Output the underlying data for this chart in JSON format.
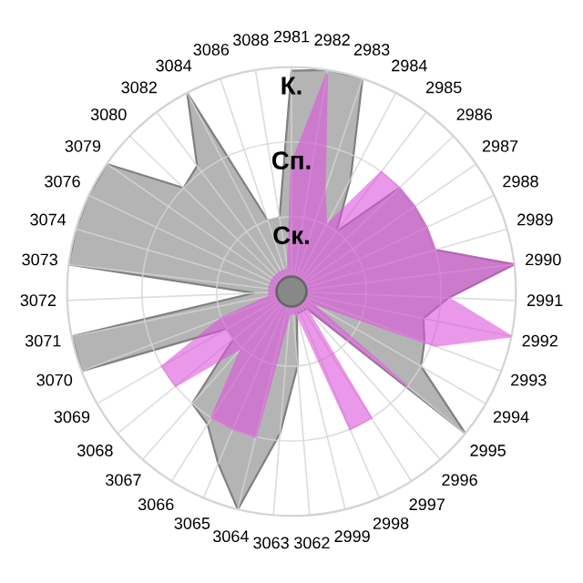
{
  "chart_data": {
    "type": "radar",
    "categories": [
      "2981",
      "2982",
      "2983",
      "2984",
      "2985",
      "2986",
      "2987",
      "2988",
      "2989",
      "2990",
      "2991",
      "2992",
      "2993",
      "2994",
      "2995",
      "2996",
      "2997",
      "2998",
      "2999",
      "3062",
      "3063",
      "3064",
      "3065",
      "3066",
      "3067",
      "3068",
      "3069",
      "3070",
      "3071",
      "3072",
      "3073",
      "3074",
      "3076",
      "3079",
      "3080",
      "3082",
      "3084",
      "3086",
      "3088"
    ],
    "series": [
      {
        "color": "#b4b4b4",
        "values": [
          2.95,
          3.0,
          3.0,
          1.7,
          1.0,
          2.0,
          2.0,
          2.0,
          2.0,
          3.0,
          2.1,
          1.8,
          1.9,
          2.0,
          3.0,
          0.3,
          0.3,
          0.3,
          0.3,
          1.0,
          1.9,
          3.0,
          2.5,
          2.1,
          2.0,
          1.0,
          1.0,
          3.0,
          3.0,
          0.5,
          3.0,
          3.0,
          3.0,
          3.0,
          2.0,
          2.1,
          3.0,
          1.0,
          1.0
        ]
      },
      {
        "color": "#dd55dd",
        "values": [
          1.7,
          2.95,
          1.4,
          1.0,
          2.0,
          2.0,
          2.0,
          2.0,
          2.0,
          3.0,
          2.1,
          3.0,
          2.05,
          0.3,
          2.0,
          0.3,
          2.0,
          2.0,
          0.3,
          0.3,
          0.3,
          2.0,
          2.0,
          2.0,
          1.0,
          2.0,
          2.0,
          1.0,
          0.3,
          0.3,
          0.3,
          0.3,
          0.3,
          0.3,
          0.3,
          0.3,
          0.3,
          0.3,
          0.3
        ]
      }
    ],
    "ylim": [
      0,
      3
    ],
    "yticks": [
      {
        "value": 1,
        "label": "Ск."
      },
      {
        "value": 2,
        "label": "Сп."
      },
      {
        "value": 3,
        "label": "К."
      }
    ],
    "grid": true
  }
}
